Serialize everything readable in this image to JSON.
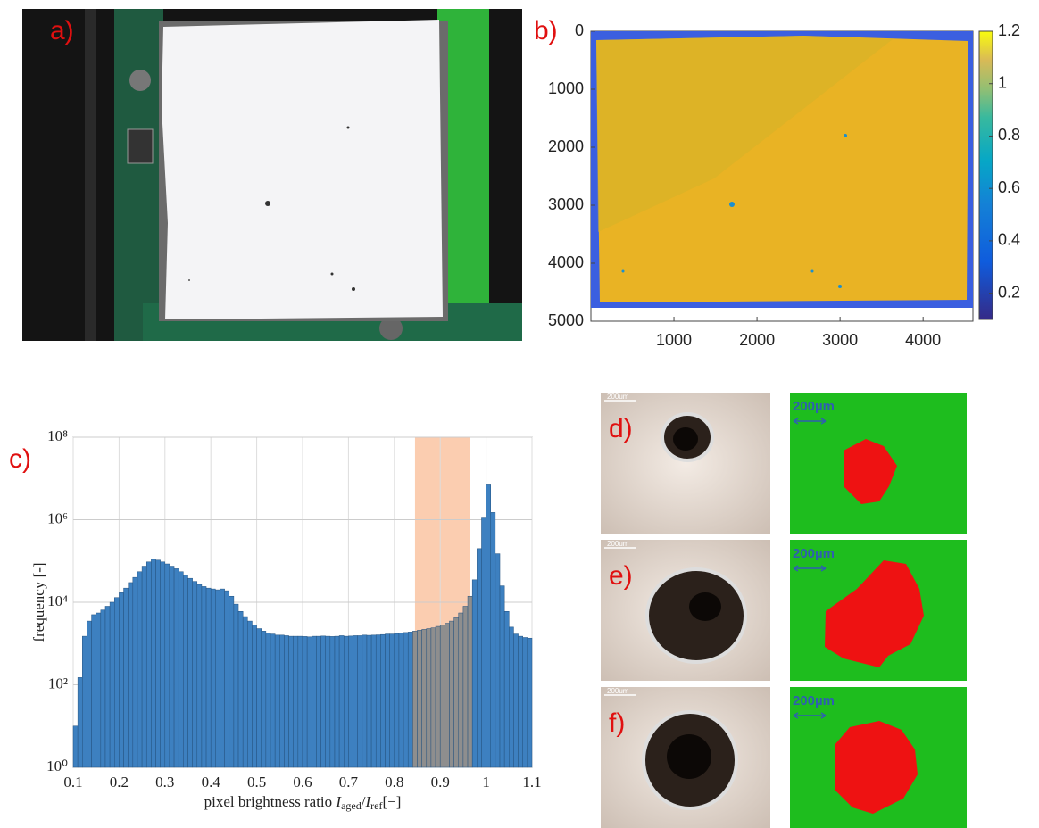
{
  "panel_labels": [
    "a)",
    "b)",
    "c)"
  ],
  "chart_data": [
    {
      "type": "heatmap",
      "xlim": [
        0,
        4600
      ],
      "xticks": [
        1000,
        2000,
        3000,
        4000
      ],
      "ylim": [
        0,
        5000
      ],
      "yticks": [
        0,
        1000,
        2000,
        3000,
        4000,
        5000
      ],
      "y_reversed": true,
      "clim": [
        0.1,
        1.2
      ],
      "cticks": [
        0.2,
        0.4,
        0.6,
        0.8,
        1,
        1.2
      ]
    },
    {
      "type": "histogram",
      "bins": [
        0.1,
        0.11,
        0.12,
        0.13,
        0.14,
        0.15,
        0.16,
        0.17,
        0.18,
        0.19,
        0.2,
        0.21,
        0.22,
        0.23,
        0.24,
        0.25,
        0.26,
        0.27,
        0.28,
        0.29,
        0.3,
        0.31,
        0.32,
        0.33,
        0.34,
        0.35,
        0.36,
        0.37,
        0.38,
        0.39,
        0.4,
        0.41,
        0.42,
        0.43,
        0.44,
        0.45,
        0.46,
        0.47,
        0.48,
        0.49,
        0.5,
        0.51,
        0.52,
        0.53,
        0.54,
        0.55,
        0.56,
        0.57,
        0.58,
        0.59,
        0.6,
        0.61,
        0.62,
        0.63,
        0.64,
        0.65,
        0.66,
        0.67,
        0.68,
        0.69,
        0.7,
        0.71,
        0.72,
        0.73,
        0.74,
        0.75,
        0.76,
        0.77,
        0.78,
        0.79,
        0.8,
        0.81,
        0.82,
        0.83,
        0.84,
        0.85,
        0.86,
        0.87,
        0.88,
        0.89,
        0.9,
        0.91,
        0.92,
        0.93,
        0.94,
        0.95,
        0.96,
        0.97,
        0.98,
        0.99,
        1,
        1.01,
        1.02,
        1.03,
        1.04,
        1.05,
        1.06,
        1.07,
        1.08,
        1.09,
        1.1
      ],
      "values": [
        10,
        150,
        1500,
        3500,
        5000,
        5500,
        6500,
        8000,
        10000,
        13000,
        17000,
        22000,
        30000,
        40000,
        55000,
        75000,
        95000,
        110000,
        105000,
        95000,
        85000,
        75000,
        65000,
        55000,
        45000,
        38000,
        32000,
        27000,
        24000,
        22000,
        21000,
        20000,
        21000,
        19000,
        14000,
        9000,
        6000,
        4500,
        3500,
        2800,
        2300,
        2000,
        1800,
        1700,
        1600,
        1600,
        1550,
        1500,
        1500,
        1500,
        1480,
        1450,
        1500,
        1500,
        1520,
        1500,
        1480,
        1500,
        1550,
        1500,
        1520,
        1550,
        1550,
        1600,
        1580,
        1600,
        1620,
        1650,
        1700,
        1700,
        1750,
        1800,
        1850,
        1900,
        2000,
        2100,
        2200,
        2300,
        2400,
        2600,
        2800,
        3100,
        3500,
        4200,
        5500,
        8000,
        14000,
        35000,
        200000,
        1100000,
        7000000,
        1500000,
        150000,
        25000,
        6000,
        2500,
        1700,
        1500,
        1400,
        1350
      ],
      "color": "#3d80c0",
      "highlight_range": [
        0.845,
        0.965
      ],
      "highlight_color": "#fbcdb0",
      "highlight_bar_color": "#8e8e8e",
      "xlim": [
        0.1,
        1.1
      ],
      "xticks": [
        0.1,
        0.2,
        0.3,
        0.4,
        0.5,
        0.6,
        0.7,
        0.8,
        0.9,
        1,
        1.1
      ],
      "ylim": [
        1,
        100000000
      ],
      "log_y": true,
      "grid": true,
      "yticks": [
        {
          "value": 1,
          "label": "10⁰"
        },
        {
          "value": 100,
          "label": "10²"
        },
        {
          "value": 10000,
          "label": "10⁴"
        },
        {
          "value": 1000000,
          "label": "10⁶"
        },
        {
          "value": 100000000,
          "label": "10⁸"
        }
      ],
      "ylabel": "frequency [-]",
      "xlabel": [
        {
          "text": "pixel brightness ratio "
        },
        {
          "text": "I"
        },
        {
          "text": "aged",
          "sub": true
        },
        {
          "text": "/"
        },
        {
          "text": "I"
        },
        {
          "text": "ref",
          "sub": true
        },
        {
          "text": "[−]"
        }
      ]
    }
  ],
  "micrographs": [
    {
      "label": "d)",
      "scale_bar": "200um",
      "map_scale": "200µm"
    },
    {
      "label": "e)",
      "scale_bar": "200um",
      "map_scale": "200µm"
    },
    {
      "label": "f)",
      "scale_bar": "200um",
      "map_scale": "200µm"
    }
  ]
}
